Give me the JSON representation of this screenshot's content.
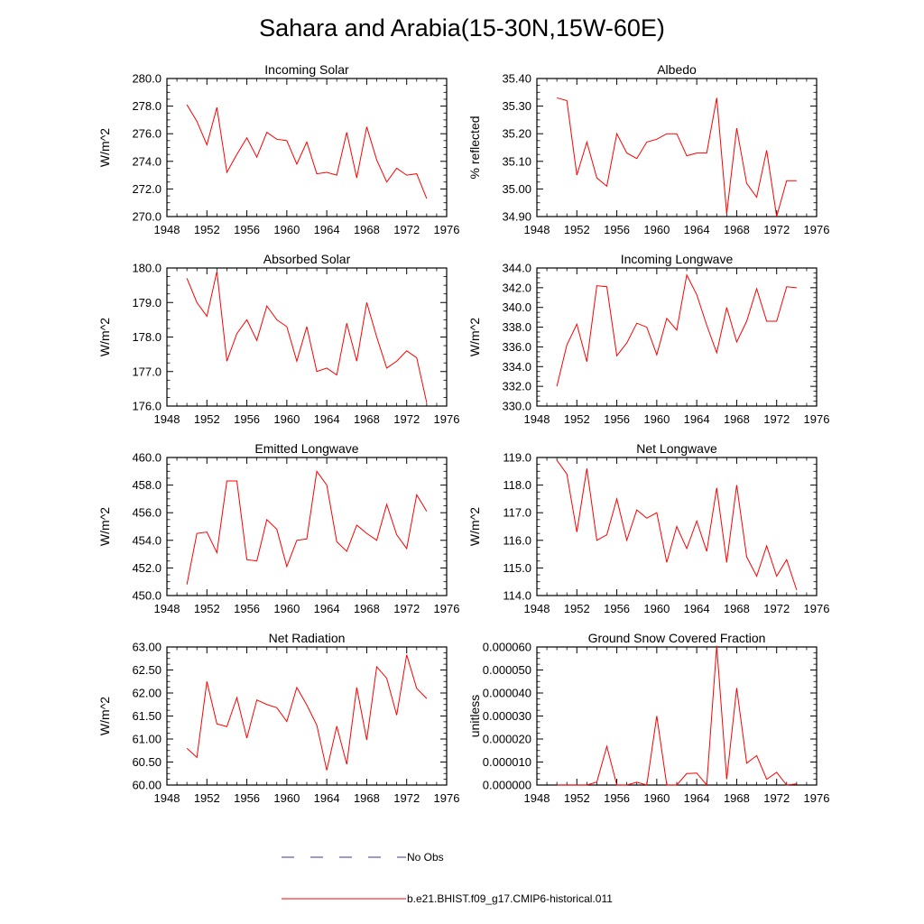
{
  "title": "Sahara and Arabia(15-30N,15W-60E)",
  "colors": {
    "model_line": "#ff0000",
    "obs_line": "#3333aa",
    "frame": "#000000"
  },
  "legend": [
    {
      "label": "No Obs",
      "style": "dashed",
      "color": "#3333aa"
    },
    {
      "label": "b.e21.BHIST.f09_g17.CMIP6-historical.011",
      "style": "solid",
      "color": "#ff0000"
    }
  ],
  "chart_data": [
    {
      "type": "line",
      "title": "Incoming Solar",
      "ylabel": "W/m^2",
      "xlim": [
        1948,
        1976
      ],
      "ylim": [
        270.0,
        280.0
      ],
      "xticks": [
        "1948",
        "1952",
        "1956",
        "1960",
        "1964",
        "1968",
        "1972",
        "1976"
      ],
      "yticks": [
        "270.0",
        "272.0",
        "274.0",
        "276.0",
        "278.0",
        "280.0"
      ],
      "x": [
        1950,
        1951,
        1952,
        1953,
        1954,
        1955,
        1956,
        1957,
        1958,
        1959,
        1960,
        1961,
        1962,
        1963,
        1964,
        1965,
        1966,
        1967,
        1968,
        1969,
        1970,
        1971,
        1972,
        1973,
        1974
      ],
      "series": [
        {
          "name": "b.e21.BHIST.f09_g17.CMIP6-historical.011",
          "values": [
            278.1,
            276.9,
            275.2,
            277.9,
            273.2,
            274.5,
            275.7,
            274.3,
            276.1,
            275.6,
            275.5,
            273.8,
            275.4,
            273.1,
            273.2,
            273.0,
            276.1,
            272.8,
            276.5,
            274.1,
            272.5,
            273.5,
            273.0,
            273.1,
            271.3
          ]
        }
      ]
    },
    {
      "type": "line",
      "title": "Albedo",
      "ylabel": "% reflected",
      "xlim": [
        1948,
        1976
      ],
      "ylim": [
        34.9,
        35.4
      ],
      "xticks": [
        "1948",
        "1952",
        "1956",
        "1960",
        "1964",
        "1968",
        "1972",
        "1976"
      ],
      "yticks": [
        "34.90",
        "35.00",
        "35.10",
        "35.20",
        "35.30",
        "35.40"
      ],
      "x": [
        1950,
        1951,
        1952,
        1953,
        1954,
        1955,
        1956,
        1957,
        1958,
        1959,
        1960,
        1961,
        1962,
        1963,
        1964,
        1965,
        1966,
        1967,
        1968,
        1969,
        1970,
        1971,
        1972,
        1973,
        1974
      ],
      "series": [
        {
          "name": "b.e21.BHIST.f09_g17.CMIP6-historical.011",
          "values": [
            35.33,
            35.32,
            35.05,
            35.17,
            35.04,
            35.01,
            35.2,
            35.13,
            35.11,
            35.17,
            35.18,
            35.2,
            35.2,
            35.12,
            35.13,
            35.13,
            35.33,
            34.91,
            35.22,
            35.02,
            34.97,
            35.14,
            34.9,
            35.03,
            35.03
          ]
        }
      ]
    },
    {
      "type": "line",
      "title": "Absorbed Solar",
      "ylabel": "W/m^2",
      "xlim": [
        1948,
        1976
      ],
      "ylim": [
        176.0,
        180.0
      ],
      "xticks": [
        "1948",
        "1952",
        "1956",
        "1960",
        "1964",
        "1968",
        "1972",
        "1976"
      ],
      "yticks": [
        "176.0",
        "177.0",
        "178.0",
        "179.0",
        "180.0"
      ],
      "x": [
        1950,
        1951,
        1952,
        1953,
        1954,
        1955,
        1956,
        1957,
        1958,
        1959,
        1960,
        1961,
        1962,
        1963,
        1964,
        1965,
        1966,
        1967,
        1968,
        1969,
        1970,
        1971,
        1972,
        1973,
        1974
      ],
      "series": [
        {
          "name": "b.e21.BHIST.f09_g17.CMIP6-historical.011",
          "values": [
            179.7,
            179.0,
            178.6,
            179.9,
            177.3,
            178.1,
            178.5,
            177.9,
            178.9,
            178.5,
            178.3,
            177.3,
            178.3,
            177.0,
            177.1,
            176.9,
            178.4,
            177.3,
            179.0,
            178.0,
            177.1,
            177.3,
            177.6,
            177.4,
            176.1
          ]
        }
      ]
    },
    {
      "type": "line",
      "title": "Incoming Longwave",
      "ylabel": "W/m^2",
      "xlim": [
        1948,
        1976
      ],
      "ylim": [
        330.0,
        344.0
      ],
      "xticks": [
        "1948",
        "1952",
        "1956",
        "1960",
        "1964",
        "1968",
        "1972",
        "1976"
      ],
      "yticks": [
        "330.0",
        "332.0",
        "334.0",
        "336.0",
        "338.0",
        "340.0",
        "342.0",
        "344.0"
      ],
      "x": [
        1950,
        1951,
        1952,
        1953,
        1954,
        1955,
        1956,
        1957,
        1958,
        1959,
        1960,
        1961,
        1962,
        1963,
        1964,
        1965,
        1966,
        1967,
        1968,
        1969,
        1970,
        1971,
        1972,
        1973,
        1974
      ],
      "series": [
        {
          "name": "b.e21.BHIST.f09_g17.CMIP6-historical.011",
          "values": [
            332.0,
            336.2,
            338.3,
            334.5,
            342.2,
            342.1,
            335.1,
            336.4,
            338.4,
            338.0,
            335.2,
            338.9,
            337.7,
            343.3,
            341.3,
            338.2,
            335.4,
            340.0,
            336.5,
            338.6,
            341.9,
            338.6,
            338.6,
            342.1,
            342.0
          ]
        }
      ]
    },
    {
      "type": "line",
      "title": "Emitted Longwave",
      "ylabel": "W/m^2",
      "xlim": [
        1948,
        1976
      ],
      "ylim": [
        450.0,
        460.0
      ],
      "xticks": [
        "1948",
        "1952",
        "1956",
        "1960",
        "1964",
        "1968",
        "1972",
        "1976"
      ],
      "yticks": [
        "450.0",
        "452.0",
        "454.0",
        "456.0",
        "458.0",
        "460.0"
      ],
      "x": [
        1950,
        1951,
        1952,
        1953,
        1954,
        1955,
        1956,
        1957,
        1958,
        1959,
        1960,
        1961,
        1962,
        1963,
        1964,
        1965,
        1966,
        1967,
        1968,
        1969,
        1970,
        1971,
        1972,
        1973,
        1974
      ],
      "series": [
        {
          "name": "b.e21.BHIST.f09_g17.CMIP6-historical.011",
          "values": [
            450.8,
            454.5,
            454.6,
            453.1,
            458.3,
            458.3,
            452.6,
            452.5,
            455.5,
            454.8,
            452.1,
            454.0,
            454.1,
            459.0,
            458.0,
            453.9,
            453.2,
            455.1,
            454.5,
            454.0,
            456.6,
            454.4,
            453.4,
            457.3,
            456.1
          ]
        }
      ]
    },
    {
      "type": "line",
      "title": "Net Longwave",
      "ylabel": "W/m^2",
      "xlim": [
        1948,
        1976
      ],
      "ylim": [
        114.0,
        119.0
      ],
      "xticks": [
        "1948",
        "1952",
        "1956",
        "1960",
        "1964",
        "1968",
        "1972",
        "1976"
      ],
      "yticks": [
        "114.0",
        "115.0",
        "116.0",
        "117.0",
        "118.0",
        "119.0"
      ],
      "x": [
        1950,
        1951,
        1952,
        1953,
        1954,
        1955,
        1956,
        1957,
        1958,
        1959,
        1960,
        1961,
        1962,
        1963,
        1964,
        1965,
        1966,
        1967,
        1968,
        1969,
        1970,
        1971,
        1972,
        1973,
        1974
      ],
      "series": [
        {
          "name": "b.e21.BHIST.f09_g17.CMIP6-historical.011",
          "values": [
            118.9,
            118.4,
            116.3,
            118.6,
            116.0,
            116.2,
            117.5,
            116.0,
            117.1,
            116.8,
            117.0,
            115.2,
            116.5,
            115.7,
            116.7,
            115.6,
            117.9,
            115.2,
            118.0,
            115.4,
            114.7,
            115.8,
            114.7,
            115.3,
            114.2
          ]
        }
      ]
    },
    {
      "type": "line",
      "title": "Net Radiation",
      "ylabel": "W/m^2",
      "xlim": [
        1948,
        1976
      ],
      "ylim": [
        60.0,
        63.0
      ],
      "xticks": [
        "1948",
        "1952",
        "1956",
        "1960",
        "1964",
        "1968",
        "1972",
        "1976"
      ],
      "yticks": [
        "60.00",
        "60.50",
        "61.00",
        "61.50",
        "62.00",
        "62.50",
        "63.00"
      ],
      "x": [
        1950,
        1951,
        1952,
        1953,
        1954,
        1955,
        1956,
        1957,
        1958,
        1959,
        1960,
        1961,
        1962,
        1963,
        1964,
        1965,
        1966,
        1967,
        1968,
        1969,
        1970,
        1971,
        1972,
        1973,
        1974
      ],
      "series": [
        {
          "name": "b.e21.BHIST.f09_g17.CMIP6-historical.011",
          "values": [
            60.8,
            60.6,
            62.25,
            61.33,
            61.27,
            61.9,
            61.02,
            61.85,
            61.75,
            61.68,
            61.38,
            62.12,
            61.74,
            61.3,
            60.32,
            61.28,
            60.45,
            62.12,
            60.98,
            62.57,
            62.32,
            61.52,
            62.83,
            62.1,
            61.88
          ]
        }
      ]
    },
    {
      "type": "line",
      "title": "Ground Snow Covered Fraction",
      "ylabel": "unitless",
      "xlim": [
        1948,
        1976
      ],
      "ylim": [
        0.0,
        6e-05
      ],
      "xticks": [
        "1948",
        "1952",
        "1956",
        "1960",
        "1964",
        "1968",
        "1972",
        "1976"
      ],
      "yticks": [
        "0.000000",
        "0.000010",
        "0.000020",
        "0.000030",
        "0.000040",
        "0.000050",
        "0.000060"
      ],
      "x": [
        1950,
        1951,
        1952,
        1953,
        1954,
        1955,
        1956,
        1957,
        1958,
        1959,
        1960,
        1961,
        1962,
        1963,
        1964,
        1965,
        1966,
        1967,
        1968,
        1969,
        1970,
        1971,
        1972,
        1973,
        1974
      ],
      "series": [
        {
          "name": "b.e21.BHIST.f09_g17.CMIP6-historical.011",
          "values": [
            0.0,
            0.0,
            0.0,
            0.0,
            1.3e-06,
            1.68e-05,
            0.0,
            0.0,
            1.2e-06,
            0.0,
            3e-05,
            0.0,
            0.0,
            5e-06,
            5.2e-06,
            0.0,
            6.05e-05,
            2.5e-06,
            4.22e-05,
            9.5e-06,
            1.28e-05,
            2.5e-06,
            5.5e-06,
            0.0,
            5e-07
          ]
        }
      ]
    }
  ]
}
